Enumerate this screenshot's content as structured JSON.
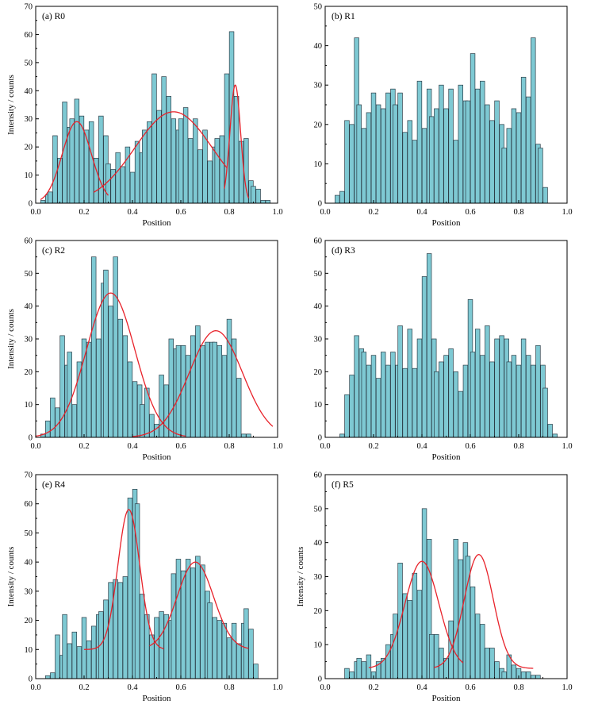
{
  "chart_data": [
    {
      "type": "bar",
      "title": "(a) R0",
      "xlabel": "Position",
      "ylabel": "Intensity / counts",
      "xlim": [
        0,
        1
      ],
      "ylim": [
        0,
        70
      ],
      "xticks": [
        "0.0",
        "0.2",
        "0.4",
        "0.6",
        "0.8",
        "1.0"
      ],
      "yticks": [
        "0",
        "10",
        "20",
        "30",
        "40",
        "50",
        "60",
        "70"
      ],
      "bin_width": 0.01875,
      "x": [
        0.01,
        0.03,
        0.05,
        0.06,
        0.08,
        0.1,
        0.12,
        0.14,
        0.15,
        0.17,
        0.19,
        0.21,
        0.23,
        0.25,
        0.27,
        0.29,
        0.3,
        0.32,
        0.34,
        0.36,
        0.38,
        0.4,
        0.42,
        0.44,
        0.45,
        0.47,
        0.49,
        0.51,
        0.53,
        0.55,
        0.57,
        0.59,
        0.6,
        0.62,
        0.64,
        0.66,
        0.68,
        0.7,
        0.72,
        0.74,
        0.75,
        0.77,
        0.79,
        0.81,
        0.83,
        0.85,
        0.87,
        0.89,
        0.9,
        0.92,
        0.94,
        0.96,
        0.98
      ],
      "values": [
        0,
        1,
        3,
        4,
        24,
        16,
        36,
        27,
        30,
        37,
        31,
        26,
        29,
        16,
        31,
        24,
        14,
        12,
        18,
        13,
        20,
        11,
        22,
        18,
        26,
        29,
        46,
        33,
        45,
        38,
        30,
        26,
        30,
        34,
        23,
        30,
        19,
        26,
        15,
        20,
        23,
        24,
        46,
        61,
        38,
        22,
        23,
        8,
        6,
        5,
        1,
        1,
        0
      ],
      "fits": [
        {
          "type": "gaussian",
          "amplitude": 29,
          "center": 0.17,
          "sigma": 0.06,
          "x_range": [
            0.02,
            0.3
          ]
        },
        {
          "type": "gaussian",
          "amplitude": 32.5,
          "center": 0.57,
          "sigma": 0.16,
          "x_range": [
            0.24,
            0.79
          ]
        },
        {
          "type": "gaussian",
          "amplitude": 42,
          "center": 0.825,
          "sigma": 0.022,
          "x_range": [
            0.78,
            0.88
          ]
        }
      ]
    },
    {
      "type": "bar",
      "title": "(b) R1",
      "xlabel": "Position",
      "ylabel": "",
      "xlim": [
        0,
        1
      ],
      "ylim": [
        0,
        50
      ],
      "xticks": [
        "0.0",
        "0.2",
        "0.4",
        "0.6",
        "0.8",
        "1.0"
      ],
      "yticks": [
        "0",
        "10",
        "20",
        "30",
        "40",
        "50"
      ],
      "bin_width": 0.01875,
      "x": [
        0.05,
        0.07,
        0.09,
        0.11,
        0.13,
        0.14,
        0.16,
        0.18,
        0.2,
        0.22,
        0.24,
        0.26,
        0.28,
        0.29,
        0.31,
        0.33,
        0.35,
        0.37,
        0.39,
        0.41,
        0.43,
        0.44,
        0.46,
        0.48,
        0.5,
        0.52,
        0.54,
        0.56,
        0.58,
        0.59,
        0.61,
        0.63,
        0.65,
        0.67,
        0.69,
        0.71,
        0.73,
        0.74,
        0.76,
        0.78,
        0.8,
        0.82,
        0.84,
        0.86,
        0.88,
        0.89,
        0.91,
        0.93
      ],
      "values": [
        2,
        3,
        21,
        20,
        42,
        25,
        19,
        23,
        28,
        25,
        24,
        28,
        29,
        25,
        28,
        18,
        21,
        16,
        31,
        19,
        29,
        22,
        24,
        30,
        24,
        29,
        16,
        30,
        26,
        26,
        38,
        29,
        31,
        25,
        21,
        26,
        20,
        14,
        19,
        24,
        23,
        32,
        27,
        42,
        15,
        14,
        4,
        0
      ],
      "fits": []
    },
    {
      "type": "bar",
      "title": "(c) R2",
      "xlabel": "Position",
      "ylabel": "Intensity / counts",
      "xlim": [
        0,
        1
      ],
      "ylim": [
        0,
        60
      ],
      "xticks": [
        "0.0",
        "0.2",
        "0.4",
        "0.6",
        "0.8",
        "1.0"
      ],
      "yticks": [
        "0",
        "10",
        "20",
        "30",
        "40",
        "50",
        "60"
      ],
      "bin_width": 0.01875,
      "x": [
        0.03,
        0.05,
        0.07,
        0.09,
        0.11,
        0.13,
        0.14,
        0.16,
        0.18,
        0.2,
        0.22,
        0.24,
        0.26,
        0.28,
        0.29,
        0.31,
        0.33,
        0.35,
        0.37,
        0.39,
        0.41,
        0.43,
        0.44,
        0.46,
        0.48,
        0.5,
        0.52,
        0.54,
        0.56,
        0.58,
        0.59,
        0.61,
        0.63,
        0.65,
        0.67,
        0.69,
        0.71,
        0.73,
        0.74,
        0.76,
        0.78,
        0.8,
        0.82,
        0.84,
        0.86,
        0.88,
        0.89,
        0.91,
        0.93
      ],
      "values": [
        1,
        5,
        12,
        9,
        31,
        22,
        26,
        10,
        23,
        30,
        29,
        55,
        30,
        47,
        51,
        40,
        55,
        36,
        31,
        23,
        17,
        16,
        10,
        15,
        7,
        4,
        19,
        16,
        30,
        27,
        28,
        28,
        25,
        31,
        34,
        28,
        29,
        29,
        29,
        28,
        25,
        36,
        30,
        18,
        1,
        1,
        0,
        0,
        0
      ],
      "fits": [
        {
          "type": "gaussian",
          "amplitude": 44,
          "center": 0.31,
          "sigma": 0.1,
          "x_range": [
            0.0,
            0.62
          ]
        },
        {
          "type": "gaussian",
          "amplitude": 32.5,
          "center": 0.745,
          "sigma": 0.11,
          "x_range": [
            0.4,
            0.98
          ]
        }
      ]
    },
    {
      "type": "bar",
      "title": "(d) R3",
      "xlabel": "Position",
      "ylabel": "",
      "xlim": [
        0,
        1
      ],
      "ylim": [
        0,
        60
      ],
      "xticks": [
        "0.0",
        "0.2",
        "0.4",
        "0.6",
        "0.8",
        "1.0"
      ],
      "yticks": [
        "0",
        "10",
        "20",
        "30",
        "40",
        "50",
        "60"
      ],
      "bin_width": 0.01875,
      "x": [
        0.07,
        0.09,
        0.11,
        0.13,
        0.15,
        0.16,
        0.18,
        0.2,
        0.22,
        0.24,
        0.26,
        0.28,
        0.3,
        0.31,
        0.33,
        0.35,
        0.37,
        0.39,
        0.41,
        0.43,
        0.45,
        0.46,
        0.48,
        0.5,
        0.52,
        0.54,
        0.56,
        0.58,
        0.6,
        0.61,
        0.63,
        0.65,
        0.67,
        0.69,
        0.71,
        0.73,
        0.75,
        0.76,
        0.78,
        0.8,
        0.82,
        0.84,
        0.86,
        0.88,
        0.9,
        0.91,
        0.93,
        0.95
      ],
      "values": [
        1,
        13,
        19,
        31,
        27,
        26,
        22,
        25,
        18,
        26,
        22,
        26,
        22,
        34,
        21,
        33,
        21,
        30,
        49,
        56,
        30,
        20,
        23,
        25,
        27,
        20,
        14,
        22,
        42,
        26,
        33,
        25,
        34,
        23,
        30,
        31,
        30,
        23,
        25,
        22,
        30,
        25,
        22,
        28,
        22,
        15,
        4,
        1
      ],
      "fits": []
    },
    {
      "type": "bar",
      "title": "(e) R4",
      "xlabel": "Position",
      "ylabel": "Intensity / counts",
      "xlim": [
        0,
        1
      ],
      "ylim": [
        0,
        70
      ],
      "xticks": [
        "0.0",
        "0.2",
        "0.4",
        "0.6",
        "0.8",
        "1.0"
      ],
      "yticks": [
        "0",
        "10",
        "20",
        "30",
        "40",
        "50",
        "60",
        "70"
      ],
      "bin_width": 0.01875,
      "x": [
        0.05,
        0.07,
        0.09,
        0.11,
        0.12,
        0.14,
        0.16,
        0.18,
        0.2,
        0.22,
        0.24,
        0.26,
        0.27,
        0.29,
        0.31,
        0.33,
        0.35,
        0.37,
        0.39,
        0.41,
        0.42,
        0.44,
        0.46,
        0.48,
        0.5,
        0.52,
        0.54,
        0.56,
        0.57,
        0.59,
        0.61,
        0.63,
        0.65,
        0.67,
        0.69,
        0.71,
        0.72,
        0.74,
        0.76,
        0.78,
        0.8,
        0.82,
        0.84,
        0.86,
        0.87,
        0.89,
        0.91,
        0.93
      ],
      "values": [
        1,
        2,
        15,
        8,
        22,
        12,
        16,
        11,
        21,
        13,
        18,
        22,
        23,
        27,
        33,
        34,
        33,
        35,
        62,
        65,
        60,
        29,
        22,
        15,
        21,
        23,
        22,
        20,
        36,
        41,
        37,
        41,
        38,
        42,
        39,
        30,
        26,
        21,
        20,
        19,
        14,
        19,
        12,
        19,
        24,
        17,
        5,
        0
      ],
      "fits": [
        {
          "type": "gaussian_plus_baseline",
          "amplitude": 48,
          "center": 0.385,
          "sigma": 0.045,
          "baseline": 10,
          "x_range": [
            0.2,
            0.53
          ]
        },
        {
          "type": "gaussian_plus_baseline",
          "amplitude": 30,
          "center": 0.66,
          "sigma": 0.075,
          "baseline": 10,
          "x_range": [
            0.47,
            0.88
          ]
        }
      ]
    },
    {
      "type": "bar",
      "title": "(f) R5",
      "xlabel": "Position",
      "ylabel": "Intensity / counts",
      "xlim": [
        0,
        1
      ],
      "ylim": [
        0,
        60
      ],
      "xticks": [
        "0.0",
        "0.2",
        "0.4",
        "0.6",
        "0.8",
        "1.0"
      ],
      "yticks": [
        "0",
        "10",
        "20",
        "30",
        "40",
        "50",
        "60"
      ],
      "bin_width": 0.01875,
      "x": [
        0.09,
        0.11,
        0.13,
        0.14,
        0.16,
        0.18,
        0.2,
        0.22,
        0.24,
        0.26,
        0.28,
        0.29,
        0.31,
        0.33,
        0.35,
        0.37,
        0.39,
        0.41,
        0.43,
        0.44,
        0.46,
        0.48,
        0.5,
        0.52,
        0.54,
        0.56,
        0.58,
        0.59,
        0.61,
        0.63,
        0.65,
        0.67,
        0.69,
        0.71,
        0.73,
        0.74,
        0.76,
        0.78,
        0.8,
        0.82,
        0.84,
        0.86,
        0.88,
        0.89,
        0.91,
        0.93
      ],
      "values": [
        3,
        2,
        5,
        6,
        5,
        7,
        2,
        5,
        6,
        10,
        13,
        19,
        34,
        25,
        23,
        31,
        26,
        50,
        41,
        13,
        13,
        9,
        6,
        17,
        41,
        35,
        40,
        36,
        27,
        19,
        16,
        9,
        9,
        5,
        3,
        2,
        7,
        4,
        3,
        2,
        2,
        1,
        1,
        0,
        0,
        0
      ],
      "fits": [
        {
          "type": "gaussian_plus_baseline",
          "amplitude": 31.5,
          "center": 0.4,
          "sigma": 0.07,
          "baseline": 3,
          "x_range": [
            0.18,
            0.57
          ]
        },
        {
          "type": "gaussian_plus_baseline",
          "amplitude": 33.5,
          "center": 0.635,
          "sigma": 0.06,
          "baseline": 3,
          "x_range": [
            0.45,
            0.86
          ]
        }
      ]
    }
  ],
  "style": {
    "bar_fill": "#7ec9d3",
    "bar_stroke": "#2c3e48",
    "fit_color": "#e8222a",
    "axis_color": "#000000"
  }
}
